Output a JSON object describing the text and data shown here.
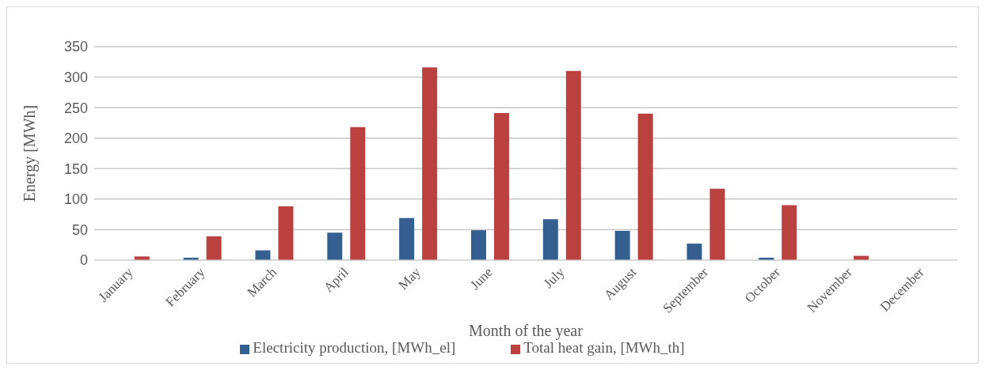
{
  "chart_data": {
    "type": "bar",
    "xlabel": "Month of the year",
    "ylabel": "Energy [MWh]",
    "categories": [
      "January",
      "February",
      "March",
      "April",
      "May",
      "June",
      "July",
      "August",
      "September",
      "October",
      "November",
      "December"
    ],
    "series": [
      {
        "name": "Electricity production, [MWh_el]",
        "color": "#355f91",
        "values": [
          0,
          4,
          16,
          45,
          69,
          49,
          67,
          48,
          27,
          4,
          0,
          0
        ]
      },
      {
        "name": "Total heat gain, [MWh_th]",
        "color": "#bb4141",
        "values": [
          6,
          39,
          88,
          218,
          316,
          241,
          310,
          240,
          117,
          90,
          7,
          0
        ]
      }
    ],
    "ylim": [
      0,
      350
    ],
    "yticks": [
      0,
      50,
      100,
      150,
      200,
      250,
      300,
      350
    ],
    "grid": "y",
    "legend": "bottom"
  }
}
